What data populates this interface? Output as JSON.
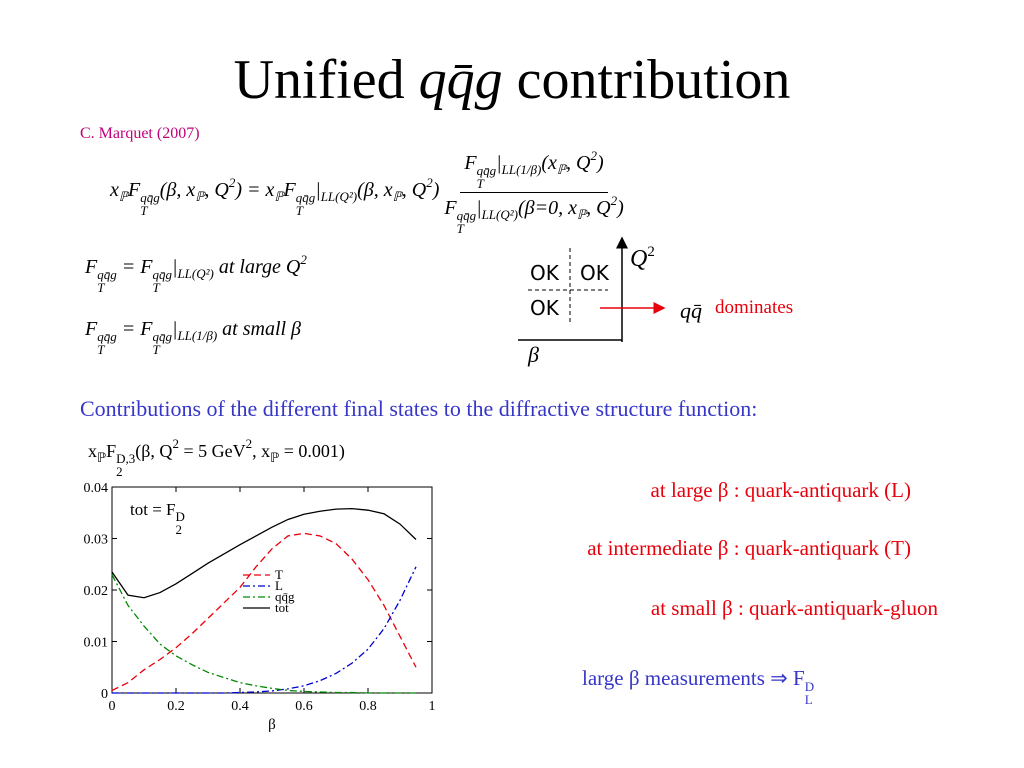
{
  "title": {
    "pre": "Unified",
    "math": "qq̄g",
    "post": "contribution"
  },
  "author": "C. Marquet (2007)",
  "eq1": {
    "lhs": [
      {
        "t": "x"
      },
      {
        "b": "ℙ"
      },
      {
        "t": "F"
      },
      {
        "b": "T",
        "p": "qq̄g"
      },
      {
        "t": "(β, x"
      },
      {
        "b": "ℙ"
      },
      {
        "t": ", Q"
      },
      {
        "p": "2"
      },
      {
        "t": ") = x"
      },
      {
        "b": "ℙ"
      },
      {
        "t": "F"
      },
      {
        "b": "T",
        "p": "qq̄g"
      },
      {
        "t": "|"
      },
      {
        "b": "LL(Q²)"
      },
      {
        "t": "(β, x"
      },
      {
        "b": "ℙ"
      },
      {
        "t": ", Q"
      },
      {
        "p": "2"
      },
      {
        "t": ")"
      }
    ],
    "num": [
      {
        "t": "F"
      },
      {
        "b": "T",
        "p": "qq̄g"
      },
      {
        "t": "|"
      },
      {
        "b": "LL(1/β)"
      },
      {
        "t": "(x"
      },
      {
        "b": "ℙ"
      },
      {
        "t": ", Q"
      },
      {
        "p": "2"
      },
      {
        "t": ")"
      }
    ],
    "den": [
      {
        "t": "F"
      },
      {
        "b": "T",
        "p": "qq̄g"
      },
      {
        "t": "|"
      },
      {
        "b": "LL(Q²)"
      },
      {
        "t": "(β=0, x"
      },
      {
        "b": "ℙ"
      },
      {
        "t": ", Q"
      },
      {
        "p": "2"
      },
      {
        "t": ")"
      }
    ]
  },
  "eq2": [
    {
      "t": "F"
    },
    {
      "b": "T",
      "p": "qq̄g"
    },
    {
      "t": " = F"
    },
    {
      "b": "T",
      "p": "qq̄g"
    },
    {
      "t": "|"
    },
    {
      "b": "LL(Q²)"
    },
    {
      "t": "  at large Q"
    },
    {
      "p": "2"
    }
  ],
  "eq3": [
    {
      "t": "F"
    },
    {
      "b": "T",
      "p": "qq̄g"
    },
    {
      "t": " = F"
    },
    {
      "b": "T",
      "p": "qq̄g"
    },
    {
      "t": "|"
    },
    {
      "b": "LL(1/β)"
    },
    {
      "t": "  at small β"
    }
  ],
  "diagram": {
    "ok1": "OK",
    "ok2": "OK",
    "ok3": "OK",
    "q": "Q",
    "q_sup": "2",
    "beta": "β",
    "qq": "qq̄",
    "dominates": "dominates"
  },
  "contributions": "Contributions of the different final states to the diffractive structure function:",
  "eq4": [
    {
      "t": "x"
    },
    {
      "b": "ℙ"
    },
    {
      "t": "F"
    },
    {
      "b": "2",
      "p": "D,3"
    },
    {
      "t": "(β, Q"
    },
    {
      "p": "2"
    },
    {
      "t": " = 5 GeV"
    },
    {
      "p": "2"
    },
    {
      "t": ", x"
    },
    {
      "b": "ℙ"
    },
    {
      "t": " = 0.001)"
    }
  ],
  "notes": [
    "at large β : quark-antiquark (L)",
    "at intermediate β : quark-antiquark (T)",
    "at small β : quark-antiquark-gluon"
  ],
  "conclusion": [
    {
      "t": "large β  measurements ⇒ F"
    },
    {
      "b": "L",
      "p": "D"
    }
  ],
  "chart_data": {
    "type": "line",
    "annotation": [
      {
        "t": "tot = F"
      },
      {
        "b": "2",
        "p": "D"
      }
    ],
    "x_label": "β",
    "x": [
      0,
      0.05,
      0.1,
      0.15,
      0.2,
      0.25,
      0.3,
      0.35,
      0.4,
      0.45,
      0.5,
      0.55,
      0.6,
      0.65,
      0.7,
      0.75,
      0.8,
      0.85,
      0.9,
      0.95
    ],
    "xlim": [
      0,
      1
    ],
    "xticks": [
      0,
      0.2,
      0.4,
      0.6,
      0.8,
      1
    ],
    "ylim": [
      0,
      0.04
    ],
    "yticks": [
      0,
      0.01,
      0.02,
      0.03,
      0.04
    ],
    "series": [
      {
        "name": "T",
        "color": "#e8000b",
        "style": "dashed",
        "values": [
          0.0005,
          0.002,
          0.0045,
          0.0065,
          0.0088,
          0.0115,
          0.0145,
          0.0175,
          0.0205,
          0.0245,
          0.028,
          0.0305,
          0.031,
          0.0305,
          0.029,
          0.026,
          0.022,
          0.017,
          0.011,
          0.005
        ]
      },
      {
        "name": "L",
        "color": "#0000d0",
        "style": "dashdot",
        "values": [
          0,
          0,
          0,
          0,
          0,
          0,
          0,
          0,
          0.0001,
          0.0002,
          0.0004,
          0.0008,
          0.0014,
          0.0024,
          0.0038,
          0.0058,
          0.0085,
          0.0125,
          0.018,
          0.0245
        ]
      },
      {
        "name": "qq̄g",
        "color": "#008a00",
        "style": "dashdot",
        "values": [
          0.023,
          0.017,
          0.013,
          0.0095,
          0.0072,
          0.0055,
          0.004,
          0.003,
          0.002,
          0.0014,
          0.0009,
          0.0005,
          0.0003,
          0.0002,
          0.0001,
          0.0001,
          0,
          0,
          0,
          0
        ]
      },
      {
        "name": "tot",
        "color": "#000000",
        "style": "solid",
        "values": [
          0.0235,
          0.019,
          0.0185,
          0.0195,
          0.0212,
          0.0232,
          0.0252,
          0.027,
          0.0288,
          0.0305,
          0.0322,
          0.0337,
          0.0347,
          0.0353,
          0.0357,
          0.0358,
          0.0355,
          0.0348,
          0.0328,
          0.0298
        ]
      }
    ]
  }
}
